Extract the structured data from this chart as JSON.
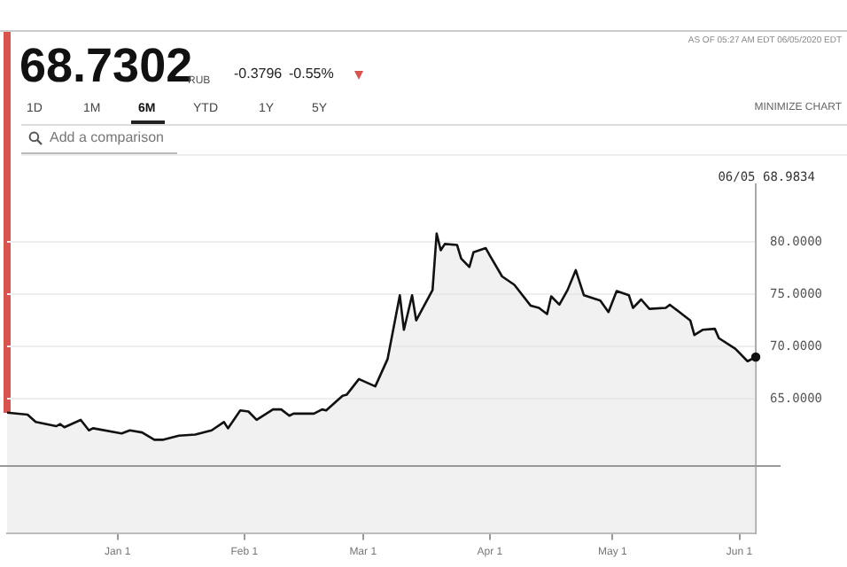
{
  "chart_data": {
    "type": "area",
    "title": "68.7302",
    "annotations": [
      "RUB",
      "-0.3796",
      "-0.55%",
      "AS OF 05:27 AM EDT 06/05/2020 EDT",
      "1D",
      "1M",
      "6M",
      "YTD",
      "1Y",
      "5Y",
      "MINIMIZE CHART",
      "Add a comparison",
      "06/05 68.9834"
    ],
    "x": [
      "2019-12-05",
      "2019-12-10",
      "2019-12-12",
      "2019-12-17",
      "2019-12-18",
      "2019-12-19",
      "2019-12-23",
      "2019-12-25",
      "2019-12-26",
      "2020-01-02",
      "2020-01-04",
      "2020-01-07",
      "2020-01-10",
      "2020-01-12",
      "2020-01-16",
      "2020-01-20",
      "2020-01-24",
      "2020-01-27",
      "2020-01-28",
      "2020-01-31",
      "2020-02-02",
      "2020-02-04",
      "2020-02-08",
      "2020-02-10",
      "2020-02-12",
      "2020-02-13",
      "2020-02-18",
      "2020-02-20",
      "2020-02-21",
      "2020-02-25",
      "2020-02-26",
      "2020-02-29",
      "2020-03-04",
      "2020-03-07",
      "2020-03-10",
      "2020-03-11",
      "2020-03-13",
      "2020-03-14",
      "2020-03-18",
      "2020-03-19",
      "2020-03-20",
      "2020-03-21",
      "2020-03-24",
      "2020-03-25",
      "2020-03-27",
      "2020-03-28",
      "2020-03-31",
      "2020-04-01",
      "2020-04-04",
      "2020-04-07",
      "2020-04-11",
      "2020-04-13",
      "2020-04-15",
      "2020-04-16",
      "2020-04-18",
      "2020-04-20",
      "2020-04-22",
      "2020-04-24",
      "2020-04-28",
      "2020-04-30",
      "2020-05-02",
      "2020-05-05",
      "2020-05-06",
      "2020-05-08",
      "2020-05-10",
      "2020-05-14",
      "2020-05-15",
      "2020-05-17",
      "2020-05-20",
      "2020-05-21",
      "2020-05-23",
      "2020-05-26",
      "2020-05-27",
      "2020-05-31",
      "2020-06-03",
      "2020-06-05"
    ],
    "series": [
      {
        "color": "#111111",
        "values": [
          63.7,
          63.5,
          62.8,
          62.4,
          62.6,
          62.3,
          63.0,
          62.0,
          62.2,
          61.7,
          62.0,
          61.8,
          61.1,
          61.1,
          61.5,
          61.6,
          62.0,
          62.8,
          62.2,
          63.9,
          63.8,
          63.0,
          64.0,
          64.0,
          63.4,
          63.6,
          63.6,
          64.0,
          63.9,
          65.3,
          65.4,
          66.9,
          66.2,
          68.8,
          74.9,
          71.6,
          74.9,
          72.5,
          75.4,
          80.8,
          79.2,
          79.8,
          79.7,
          78.4,
          77.6,
          79.0,
          79.4,
          78.7,
          76.7,
          75.9,
          73.9,
          73.7,
          73.1,
          74.8,
          74.0,
          75.4,
          77.3,
          74.9,
          74.4,
          73.3,
          75.3,
          74.9,
          73.7,
          74.5,
          73.6,
          73.7,
          74.0,
          73.4,
          72.5,
          71.1,
          71.6,
          71.7,
          70.8,
          69.8,
          68.6,
          69.0
        ]
      }
    ],
    "xlim": [
      "2019-12-05",
      "2020-06-05"
    ],
    "xticks": [
      {
        "value": "2020-01-01",
        "label": "Jan 1"
      },
      {
        "value": "2020-02-01",
        "label": "Feb 1"
      },
      {
        "value": "2020-03-01",
        "label": "Mar 1"
      },
      {
        "value": "2020-04-01",
        "label": "Apr 1"
      },
      {
        "value": "2020-05-01",
        "label": "May 1"
      },
      {
        "value": "2020-06-01",
        "label": "Jun 1"
      }
    ],
    "ylim": [
      52.2,
      85.5
    ],
    "yticks": [
      {
        "value": 65,
        "label": "65.0000"
      },
      {
        "value": 70,
        "label": "70.0000"
      },
      {
        "value": 75,
        "label": "75.0000"
      },
      {
        "value": 80,
        "label": "80.0000"
      }
    ],
    "ref_lines": [
      {
        "axis": "y",
        "value": 58.6,
        "color": "#999999"
      }
    ],
    "grid": "y",
    "legend": false,
    "marker": "none",
    "line_style": "solid"
  }
}
